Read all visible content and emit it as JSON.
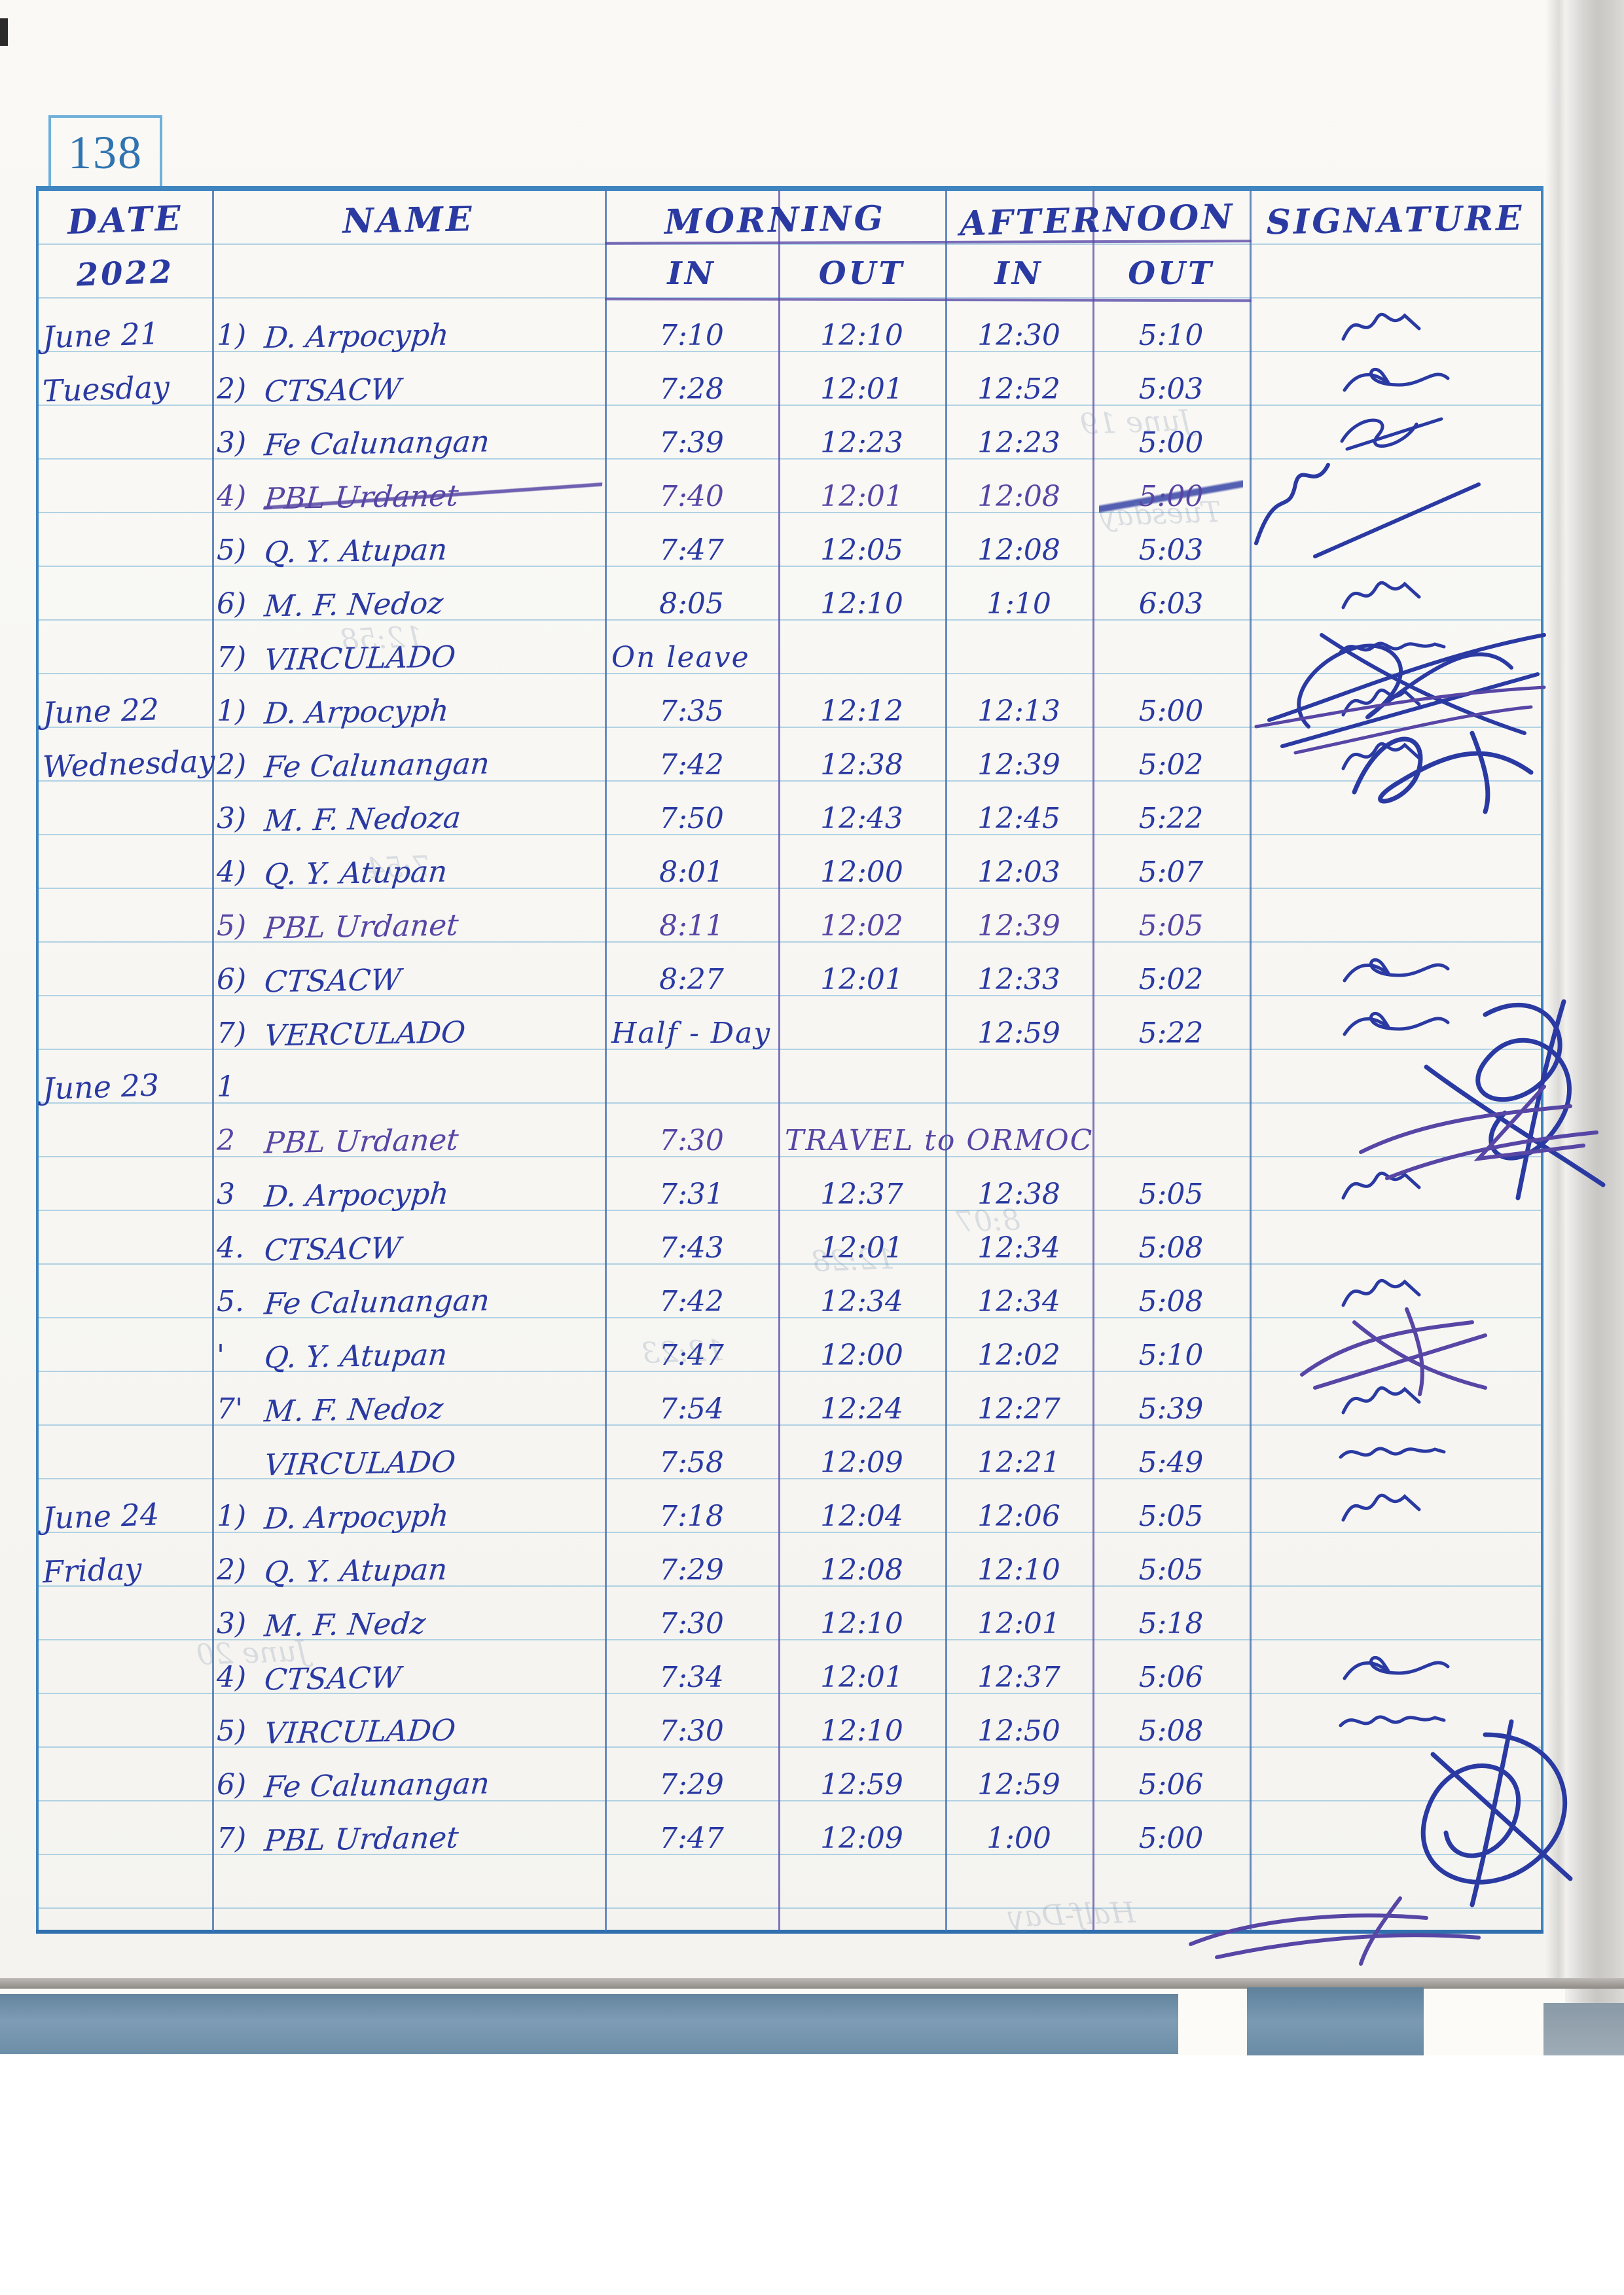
{
  "page_number": "138",
  "ink": {
    "blue": "#2a3aa2",
    "purple": "#5746a5",
    "ruling": "#78b4d7",
    "border": "#3f86c0"
  },
  "table": {
    "headers": {
      "date": "DATE",
      "year": "2022",
      "name": "NAME",
      "morning": "MORNING",
      "afternoon": "AFTERNOON",
      "signature": "SIGNATURE",
      "in": "IN",
      "out": "OUT"
    }
  },
  "days": [
    {
      "date": "June 21",
      "weekday": "Tuesday",
      "rows": [
        {
          "num": "1)",
          "name": "D. Arpocyph",
          "m_in": "7:10",
          "m_out": "12:10",
          "a_in": "12:30",
          "a_out": "5:10",
          "sig": 1
        },
        {
          "num": "2)",
          "name": "CTSACW",
          "m_in": "7:28",
          "m_out": "12:01",
          "a_in": "12:52",
          "a_out": "5:03",
          "sig": 2
        },
        {
          "num": "3)",
          "name": "Fe Calunangan",
          "m_in": "7:39",
          "m_out": "12:23",
          "a_in": "12:23",
          "a_out": "5:00",
          "sig": 3
        },
        {
          "num": "4)",
          "name": "PBL Urdanet",
          "m_in": "7:40",
          "m_out": "12:01",
          "a_in": "12:08",
          "a_out": "5:00",
          "purple": true,
          "struck": true,
          "sig": 0
        },
        {
          "num": "5)",
          "name": "Q. Y. Atupan",
          "m_in": "7:47",
          "m_out": "12:05",
          "a_in": "12:08",
          "a_out": "5:03",
          "sig": 0
        },
        {
          "num": "6)",
          "name": "M. F. Nedoz",
          "m_in": "8:05",
          "m_out": "12:10",
          "a_in": "1:10",
          "a_out": "6:03",
          "sig": 1
        },
        {
          "num": "7)",
          "name": "VIRCULADO",
          "note": "On leave",
          "note_col": "min",
          "sig": 4
        }
      ]
    },
    {
      "date": "June 22",
      "weekday": "Wednesday",
      "rows": [
        {
          "num": "1)",
          "name": "D. Arpocyph",
          "m_in": "7:35",
          "m_out": "12:12",
          "a_in": "12:13",
          "a_out": "5:00",
          "sig": 1
        },
        {
          "num": "2)",
          "name": "Fe Calunangan",
          "m_in": "7:42",
          "m_out": "12:38",
          "a_in": "12:39",
          "a_out": "5:02",
          "sig": 1
        },
        {
          "num": "3)",
          "name": "M. F. Nedoza",
          "m_in": "7:50",
          "m_out": "12:43",
          "a_in": "12:45",
          "a_out": "5:22",
          "sig": 0
        },
        {
          "num": "4)",
          "name": "Q. Y. Atupan",
          "m_in": "8:01",
          "m_out": "12:00",
          "a_in": "12:03",
          "a_out": "5:07",
          "sig": 0
        },
        {
          "num": "5)",
          "name": "PBL Urdanet",
          "m_in": "8:11",
          "m_out": "12:02",
          "a_in": "12:39",
          "a_out": "5:05",
          "purple": true,
          "sig": 0
        },
        {
          "num": "6)",
          "name": "CTSACW",
          "m_in": "8:27",
          "m_out": "12:01",
          "a_in": "12:33",
          "a_out": "5:02",
          "sig": 2
        },
        {
          "num": "7)",
          "name": "VERCULADO",
          "note": "Half - Day",
          "note_col": "min",
          "a_in": "12:59",
          "a_out": "5:22",
          "sig": 2
        }
      ]
    },
    {
      "date": "June 23",
      "weekday": "",
      "rows": [
        {
          "num": "1",
          "name": "",
          "sig": 0
        },
        {
          "num": "2",
          "name": "PBL Urdanet",
          "m_in": "7:30",
          "note": "TRAVEL to ORMOC",
          "note_col": "mout",
          "purple": true,
          "sig": 0
        },
        {
          "num": "3",
          "name": "D. Arpocyph",
          "m_in": "7:31",
          "m_out": "12:37",
          "a_in": "12:38",
          "a_out": "5:05",
          "sig": 1
        },
        {
          "num": "4.",
          "name": "CTSACW",
          "m_in": "7:43",
          "m_out": "12:01",
          "a_in": "12:34",
          "a_out": "5:08",
          "sig": 0
        },
        {
          "num": "5.",
          "name": "Fe Calunangan",
          "m_in": "7:42",
          "m_out": "12:34",
          "a_in": "12:34",
          "a_out": "5:08",
          "sig": 1
        },
        {
          "num": "'",
          "name": "Q. Y. Atupan",
          "m_in": "7:47",
          "m_out": "12:00",
          "a_in": "12:02",
          "a_out": "5:10",
          "sig": 0
        },
        {
          "num": "7'",
          "name": "M. F. Nedoz",
          "m_in": "7:54",
          "m_out": "12:24",
          "a_in": "12:27",
          "a_out": "5:39",
          "sig": 1
        },
        {
          "num": "",
          "name": "VIRCULADO",
          "m_in": "7:58",
          "m_out": "12:09",
          "a_in": "12:21",
          "a_out": "5:49",
          "sig": 4
        }
      ]
    },
    {
      "date": "June 24",
      "weekday": "Friday",
      "rows": [
        {
          "num": "1)",
          "name": "D. Arpocyph",
          "m_in": "7:18",
          "m_out": "12:04",
          "a_in": "12:06",
          "a_out": "5:05",
          "sig": 1
        },
        {
          "num": "2)",
          "name": "Q. Y. Atupan",
          "m_in": "7:29",
          "m_out": "12:08",
          "a_in": "12:10",
          "a_out": "5:05",
          "sig": 0
        },
        {
          "num": "3)",
          "name": "M. F. Nedz",
          "m_in": "7:30",
          "m_out": "12:10",
          "a_in": "12:01",
          "a_out": "5:18",
          "sig": 0
        },
        {
          "num": "4)",
          "name": "CTSACW",
          "m_in": "7:34",
          "m_out": "12:01",
          "a_in": "12:37",
          "a_out": "5:06",
          "sig": 2
        },
        {
          "num": "5)",
          "name": "VIRCULADO",
          "m_in": "7:30",
          "m_out": "12:10",
          "a_in": "12:50",
          "a_out": "5:08",
          "sig": 4
        },
        {
          "num": "6)",
          "name": "Fe Calunangan",
          "m_in": "7:29",
          "m_out": "12:59",
          "a_in": "12:59",
          "a_out": "5:06",
          "sig": 0
        },
        {
          "num": "7)",
          "name": "PBL Urdanet",
          "m_in": "7:47",
          "m_out": "12:09",
          "a_in": "1:00",
          "a_out": "5:00",
          "sig": 0
        }
      ]
    }
  ],
  "ghost_texts": [
    "June 19",
    "Tuesday",
    "12:58",
    "8:07",
    "12:28",
    "7:54",
    "Half-Day",
    "June 20",
    "12:23"
  ]
}
